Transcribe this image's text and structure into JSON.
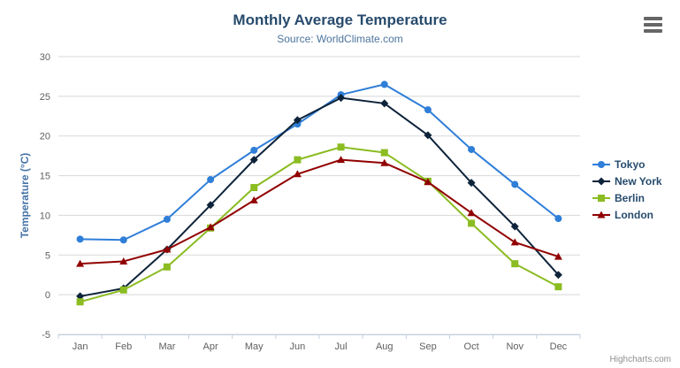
{
  "chart_data": {
    "type": "line",
    "title": "Monthly Average Temperature",
    "subtitle": "Source: WorldClimate.com",
    "xlabel": "",
    "ylabel": "Temperature (°C)",
    "categories": [
      "Jan",
      "Feb",
      "Mar",
      "Apr",
      "May",
      "Jun",
      "Jul",
      "Aug",
      "Sep",
      "Oct",
      "Nov",
      "Dec"
    ],
    "ylim": [
      -5,
      30
    ],
    "ytick_interval": 5,
    "grid": true,
    "legend_position": "right",
    "series": [
      {
        "name": "Tokyo",
        "color": "#2f7ed8",
        "marker": "circle",
        "values": [
          7.0,
          6.9,
          9.5,
          14.5,
          18.2,
          21.5,
          25.2,
          26.5,
          23.3,
          18.3,
          13.9,
          9.6
        ]
      },
      {
        "name": "New York",
        "color": "#0d233a",
        "marker": "diamond",
        "values": [
          -0.2,
          0.8,
          5.7,
          11.3,
          17.0,
          22.0,
          24.8,
          24.1,
          20.1,
          14.1,
          8.6,
          2.5
        ]
      },
      {
        "name": "Berlin",
        "color": "#8bbc21",
        "marker": "square",
        "values": [
          -0.9,
          0.6,
          3.5,
          8.4,
          13.5,
          17.0,
          18.6,
          17.9,
          14.3,
          9.0,
          3.9,
          1.0
        ]
      },
      {
        "name": "London",
        "color": "#910000",
        "marker": "triangle",
        "values": [
          3.9,
          4.2,
          5.7,
          8.5,
          11.9,
          15.2,
          17.0,
          16.6,
          14.2,
          10.3,
          6.6,
          4.8
        ]
      }
    ]
  },
  "colors": {
    "title_text": "#274b6d",
    "subtitle_text": "#4d759e",
    "axis_title_text": "#4572a7",
    "tick_label_text": "#606060",
    "gridline": "#d8d8d8",
    "x_axis_line": "#c0d0e0",
    "menu_icon": "#666666",
    "credits_text": "#909090"
  },
  "credits": {
    "label": "Highcharts.com"
  }
}
